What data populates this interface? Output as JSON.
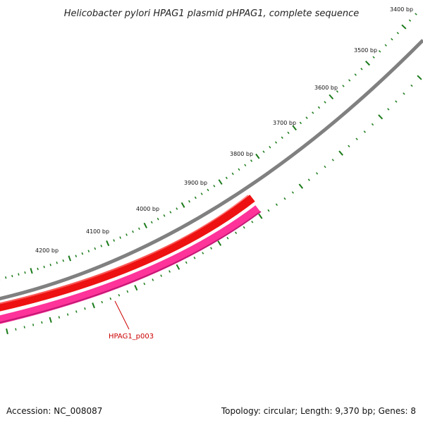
{
  "title": "Helicobacter pylori HPAG1 plasmid pHPAG1, complete sequence",
  "footer": {
    "accession": "Accession: NC_008087",
    "summary": "Topology: circular; Length: 9,370 bp; Genes: 8"
  },
  "map": {
    "backbone_color": "#808080",
    "tick_color": "#1a7a1a",
    "ticks": [
      {
        "bp": 3400,
        "label": "3400 bp"
      },
      {
        "bp": 3500,
        "label": "3500 bp"
      },
      {
        "bp": 3600,
        "label": "3600 bp"
      },
      {
        "bp": 3700,
        "label": "3700 bp"
      },
      {
        "bp": 3800,
        "label": "3800 bp"
      },
      {
        "bp": 3900,
        "label": "3900 bp"
      },
      {
        "bp": 4000,
        "label": "4000 bp"
      },
      {
        "bp": 4100,
        "label": "4100 bp"
      },
      {
        "bp": 4200,
        "label": "4200 bp"
      }
    ],
    "genes": [
      {
        "name": "HPAG1_p003",
        "color": "#ee1111",
        "strand_color": "#ff3399"
      }
    ]
  }
}
